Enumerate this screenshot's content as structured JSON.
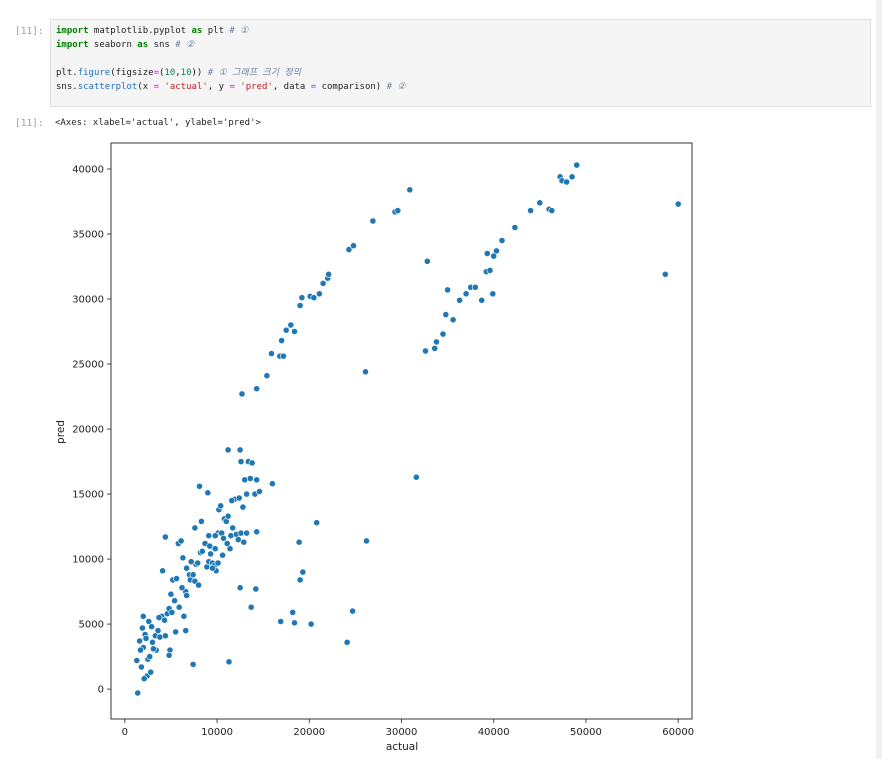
{
  "cell": {
    "in_prompt": "[11]:",
    "out_prompt": "[11]:",
    "code_lines": [
      [
        {
          "t": "import",
          "c": "kw"
        },
        {
          "t": " matplotlib.pyplot "
        },
        {
          "t": "as",
          "c": "kw"
        },
        {
          "t": " plt "
        },
        {
          "t": "# ①",
          "c": "cm"
        }
      ],
      [
        {
          "t": "import",
          "c": "kw"
        },
        {
          "t": " seaborn "
        },
        {
          "t": "as",
          "c": "kw"
        },
        {
          "t": " sns "
        },
        {
          "t": "# ②",
          "c": "cm"
        }
      ],
      [
        {
          "t": ""
        }
      ],
      [
        {
          "t": "plt."
        },
        {
          "t": "figure",
          "c": "fn"
        },
        {
          "t": "(figsize"
        },
        {
          "t": "=",
          "c": "op"
        },
        {
          "t": "("
        },
        {
          "t": "10",
          "c": "num"
        },
        {
          "t": ","
        },
        {
          "t": "10",
          "c": "num"
        },
        {
          "t": ")) "
        },
        {
          "t": "# ① 그래프 크기 정의",
          "c": "cm"
        }
      ],
      [
        {
          "t": "sns."
        },
        {
          "t": "scatterplot",
          "c": "fn"
        },
        {
          "t": "(x "
        },
        {
          "t": "=",
          "c": "op"
        },
        {
          "t": " "
        },
        {
          "t": "'actual'",
          "c": "str"
        },
        {
          "t": ", y "
        },
        {
          "t": "=",
          "c": "op"
        },
        {
          "t": " "
        },
        {
          "t": "'pred'",
          "c": "str"
        },
        {
          "t": ", data "
        },
        {
          "t": "=",
          "c": "op"
        },
        {
          "t": " comparison) "
        },
        {
          "t": "# ②",
          "c": "cm"
        }
      ]
    ],
    "output_text": "<Axes: xlabel='actual', ylabel='pred'>"
  },
  "colors": {
    "point": "#1f77b4",
    "point_edge": "#ffffff"
  },
  "chart_data": {
    "type": "scatter",
    "xlabel": "actual",
    "ylabel": "pred",
    "xlim": [
      -1500,
      61500
    ],
    "ylim": [
      -2300,
      42000
    ],
    "xticks": [
      0,
      10000,
      20000,
      30000,
      40000,
      50000,
      60000
    ],
    "yticks": [
      0,
      5000,
      10000,
      15000,
      20000,
      25000,
      30000,
      35000,
      40000
    ],
    "grid": false,
    "points": [
      [
        1400,
        -300
      ],
      [
        1300,
        2200
      ],
      [
        1800,
        1700
      ],
      [
        2400,
        1000
      ],
      [
        2800,
        1300
      ],
      [
        2100,
        800
      ],
      [
        1600,
        3700
      ],
      [
        2000,
        3200
      ],
      [
        2500,
        2300
      ],
      [
        2200,
        4200
      ],
      [
        1900,
        4700
      ],
      [
        2000,
        5600
      ],
      [
        2600,
        5200
      ],
      [
        2900,
        4800
      ],
      [
        3000,
        3600
      ],
      [
        3400,
        3000
      ],
      [
        3300,
        4100
      ],
      [
        3800,
        4000
      ],
      [
        4000,
        5600
      ],
      [
        4300,
        5300
      ],
      [
        4100,
        9100
      ],
      [
        4600,
        5800
      ],
      [
        4800,
        6200
      ],
      [
        5000,
        7300
      ],
      [
        5200,
        8400
      ],
      [
        5400,
        6800
      ],
      [
        5800,
        11200
      ],
      [
        6100,
        11400
      ],
      [
        6300,
        10100
      ],
      [
        6700,
        9300
      ],
      [
        6600,
        7500
      ],
      [
        7000,
        8800
      ],
      [
        7100,
        8400
      ],
      [
        7400,
        8800
      ],
      [
        7600,
        8300
      ],
      [
        7700,
        9600
      ],
      [
        7900,
        9700
      ],
      [
        8000,
        8000
      ],
      [
        8200,
        10500
      ],
      [
        8400,
        10600
      ],
      [
        8700,
        11200
      ],
      [
        8900,
        9400
      ],
      [
        9100,
        9800
      ],
      [
        9200,
        11000
      ],
      [
        9300,
        10400
      ],
      [
        9500,
        9700
      ],
      [
        9700,
        9500
      ],
      [
        9800,
        10800
      ],
      [
        9900,
        9100
      ],
      [
        10100,
        12000
      ],
      [
        10200,
        13800
      ],
      [
        10400,
        14100
      ],
      [
        10500,
        12000
      ],
      [
        10700,
        11600
      ],
      [
        10800,
        13100
      ],
      [
        11000,
        12900
      ],
      [
        11200,
        13300
      ],
      [
        11400,
        10800
      ],
      [
        11500,
        11800
      ],
      [
        11700,
        12400
      ],
      [
        11900,
        14600
      ],
      [
        12100,
        11900
      ],
      [
        12300,
        11500
      ],
      [
        12400,
        14700
      ],
      [
        12600,
        17500
      ],
      [
        12800,
        14000
      ],
      [
        13000,
        16100
      ],
      [
        13200,
        15000
      ],
      [
        13400,
        17500
      ],
      [
        13600,
        16200
      ],
      [
        13800,
        17400
      ],
      [
        14100,
        15000
      ],
      [
        14300,
        16100
      ],
      [
        14600,
        15200
      ],
      [
        11200,
        18400
      ],
      [
        12500,
        18400
      ],
      [
        8100,
        15600
      ],
      [
        9000,
        15100
      ],
      [
        11600,
        14500
      ],
      [
        12600,
        12000
      ],
      [
        12900,
        11300
      ],
      [
        13200,
        12000
      ],
      [
        14300,
        12100
      ],
      [
        16000,
        15800
      ],
      [
        4400,
        11700
      ],
      [
        5600,
        8500
      ],
      [
        6200,
        7800
      ],
      [
        6700,
        7200
      ],
      [
        7200,
        9800
      ],
      [
        7600,
        12400
      ],
      [
        8300,
        12900
      ],
      [
        9100,
        11800
      ],
      [
        9500,
        9300
      ],
      [
        9800,
        11800
      ],
      [
        10100,
        9700
      ],
      [
        10600,
        10300
      ],
      [
        11100,
        11200
      ],
      [
        3100,
        3100
      ],
      [
        3600,
        4500
      ],
      [
        4900,
        3000
      ],
      [
        5500,
        4400
      ],
      [
        6600,
        4500
      ],
      [
        2700,
        2500
      ],
      [
        1700,
        3000
      ],
      [
        2300,
        3900
      ],
      [
        3700,
        5500
      ],
      [
        4400,
        4100
      ],
      [
        5100,
        5900
      ],
      [
        5900,
        6300
      ],
      [
        6400,
        5600
      ],
      [
        4800,
        2600
      ],
      [
        7400,
        1900
      ],
      [
        11300,
        2100
      ],
      [
        12500,
        7800
      ],
      [
        13700,
        6300
      ],
      [
        14200,
        7700
      ],
      [
        16900,
        5200
      ],
      [
        18200,
        5900
      ],
      [
        18400,
        5100
      ],
      [
        19000,
        8400
      ],
      [
        19300,
        9000
      ],
      [
        20200,
        5000
      ],
      [
        18900,
        11300
      ],
      [
        20800,
        12800
      ],
      [
        24100,
        3600
      ],
      [
        24700,
        6000
      ],
      [
        26200,
        11400
      ],
      [
        31600,
        16300
      ],
      [
        26100,
        24400
      ],
      [
        12700,
        22700
      ],
      [
        14300,
        23100
      ],
      [
        15400,
        24100
      ],
      [
        15900,
        25800
      ],
      [
        16800,
        25600
      ],
      [
        17200,
        25600
      ],
      [
        17000,
        26800
      ],
      [
        17500,
        27600
      ],
      [
        18000,
        28000
      ],
      [
        18400,
        27500
      ],
      [
        19000,
        29500
      ],
      [
        19200,
        30100
      ],
      [
        20100,
        30200
      ],
      [
        20500,
        30100
      ],
      [
        21100,
        30400
      ],
      [
        21500,
        31200
      ],
      [
        22000,
        31600
      ],
      [
        22100,
        31900
      ],
      [
        24300,
        33800
      ],
      [
        24800,
        34100
      ],
      [
        26900,
        36000
      ],
      [
        29300,
        36700
      ],
      [
        29600,
        36800
      ],
      [
        30900,
        38400
      ],
      [
        32600,
        26000
      ],
      [
        32800,
        32900
      ],
      [
        33600,
        26200
      ],
      [
        33800,
        26700
      ],
      [
        34500,
        27300
      ],
      [
        34800,
        28800
      ],
      [
        35000,
        30700
      ],
      [
        35600,
        28400
      ],
      [
        36300,
        29900
      ],
      [
        37000,
        30400
      ],
      [
        37500,
        30900
      ],
      [
        38000,
        30900
      ],
      [
        38700,
        29900
      ],
      [
        39200,
        32100
      ],
      [
        39300,
        33500
      ],
      [
        39600,
        32200
      ],
      [
        39900,
        30400
      ],
      [
        40000,
        33300
      ],
      [
        40300,
        33700
      ],
      [
        40900,
        34500
      ],
      [
        42300,
        35500
      ],
      [
        44000,
        36800
      ],
      [
        45000,
        37400
      ],
      [
        46000,
        36900
      ],
      [
        46300,
        36800
      ],
      [
        47200,
        39400
      ],
      [
        47400,
        39100
      ],
      [
        47900,
        39000
      ],
      [
        48500,
        39400
      ],
      [
        49000,
        40300
      ],
      [
        58600,
        31900
      ],
      [
        60000,
        37300
      ]
    ]
  }
}
